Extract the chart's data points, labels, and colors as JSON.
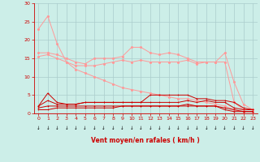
{
  "title": "",
  "xlabel": "Vent moyen/en rafales ( km/h )",
  "bg_color": "#cceee8",
  "grid_color": "#aacccc",
  "x": [
    0,
    1,
    2,
    3,
    4,
    5,
    6,
    7,
    8,
    9,
    10,
    11,
    12,
    13,
    14,
    15,
    16,
    17,
    18,
    19,
    20,
    21,
    22,
    23
  ],
  "line1": [
    23,
    26.5,
    19,
    14,
    12,
    11,
    10,
    9,
    8,
    7,
    6.5,
    6,
    5.5,
    5,
    4.5,
    4,
    4,
    3.5,
    3,
    2.5,
    2,
    1,
    0.5,
    0.5
  ],
  "line2": [
    16.5,
    16.5,
    16,
    15,
    14,
    13.5,
    15,
    15,
    15,
    15.5,
    18,
    18,
    16.5,
    16,
    16.5,
    16,
    15,
    14,
    14,
    14,
    16.5,
    8.5,
    2.5,
    1
  ],
  "line3": [
    15.5,
    16,
    15,
    14,
    13,
    13,
    13,
    13.5,
    14,
    14.5,
    14,
    14.5,
    14,
    14,
    14,
    14,
    14.5,
    13.5,
    14,
    14,
    14,
    3,
    1,
    1
  ],
  "line4": [
    2,
    5.5,
    3,
    2.5,
    2.5,
    3,
    3,
    3,
    3,
    3,
    3,
    3,
    5,
    5,
    5,
    5,
    5,
    4,
    4,
    3.5,
    3.5,
    3,
    1.5,
    1
  ],
  "line5": [
    2,
    3.5,
    2.5,
    2.5,
    2.5,
    3,
    3,
    3,
    3,
    3,
    3,
    3,
    3,
    3,
    3,
    3,
    3.5,
    3,
    3.5,
    3,
    3,
    1.5,
    1,
    1
  ],
  "line6": [
    1.5,
    2,
    2,
    2,
    2,
    2,
    2,
    2,
    2,
    2,
    2,
    2,
    2,
    2,
    2,
    2,
    2.5,
    2,
    2,
    2,
    1.5,
    1,
    0.5,
    0.5
  ],
  "line7": [
    1,
    1,
    1.5,
    1.5,
    1.5,
    1.5,
    1.5,
    1.5,
    1.5,
    2,
    2,
    2,
    2,
    2,
    2,
    2,
    2,
    2,
    2,
    2,
    1,
    0.5,
    0.5,
    0.5
  ],
  "color_light": "#ff9999",
  "color_dark": "#cc0000",
  "xlim": [
    -0.5,
    23.5
  ],
  "ylim": [
    0,
    30
  ],
  "yticks": [
    0,
    5,
    10,
    15,
    20,
    25,
    30
  ],
  "xticks": [
    0,
    1,
    2,
    3,
    4,
    5,
    6,
    7,
    8,
    9,
    10,
    11,
    12,
    13,
    14,
    15,
    16,
    17,
    18,
    19,
    20,
    21,
    22,
    23
  ],
  "arrow_symbol": "↓"
}
